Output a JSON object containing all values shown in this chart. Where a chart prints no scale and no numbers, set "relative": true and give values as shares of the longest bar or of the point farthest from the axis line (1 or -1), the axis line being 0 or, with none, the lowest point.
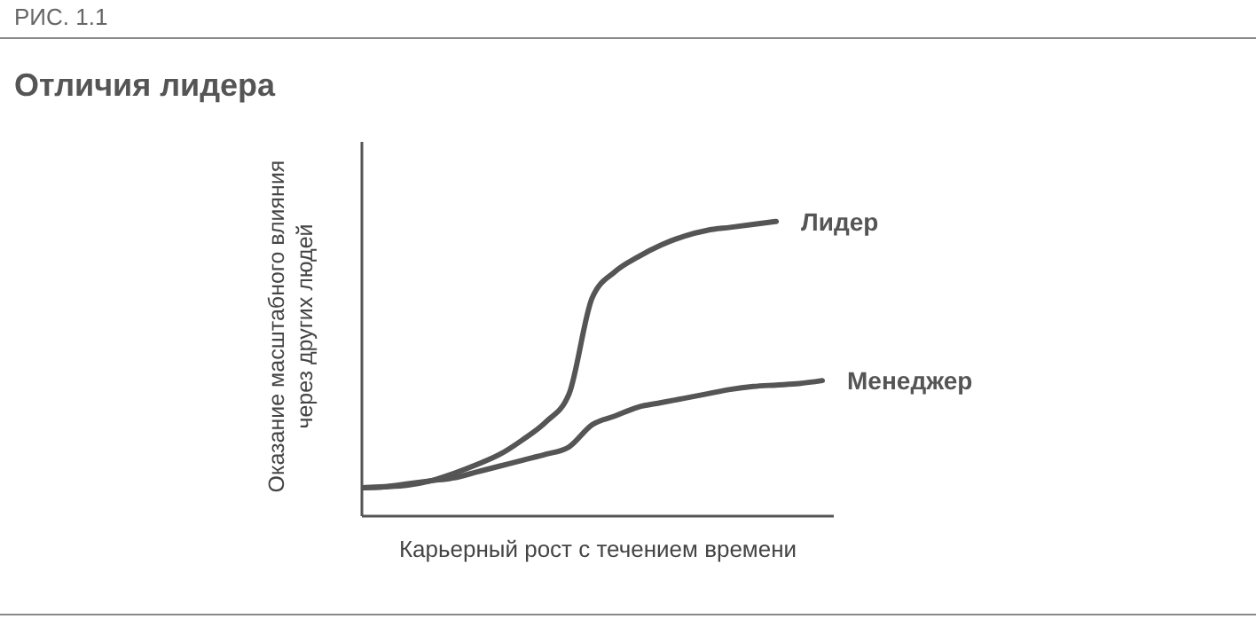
{
  "chart_data": {
    "type": "line",
    "title": "Отличия лидера",
    "annotations": [
      "РИС. 1.1"
    ],
    "xlabel": "Карьерный рост с течением времени",
    "ylabel": "Оказание масштабного влияния через других людей",
    "relative": true,
    "legend": false,
    "categories": [
      null,
      null,
      null,
      null,
      null,
      null,
      null,
      null,
      null,
      null,
      null,
      null,
      null,
      null,
      null,
      null,
      null,
      null,
      null,
      null,
      null
    ],
    "series": [
      {
        "name": "Лидер",
        "color": "#555555",
        "values": [
          0.096,
          0.099,
          0.105,
          0.12,
          0.145,
          0.175,
          0.21,
          0.26,
          0.32,
          0.415,
          0.74,
          0.83,
          0.88,
          0.92,
          0.95,
          0.97,
          0.98,
          0.99,
          1,
          null,
          null
        ]
      },
      {
        "name": "Менеджер",
        "color": "#555555",
        "values": [
          0.096,
          0.1,
          0.11,
          0.12,
          0.13,
          0.15,
          0.17,
          0.19,
          0.21,
          0.235,
          0.31,
          0.34,
          0.37,
          0.385,
          0.4,
          0.415,
          0.43,
          0.44,
          0.445,
          0.45,
          0.46
        ]
      }
    ]
  }
}
